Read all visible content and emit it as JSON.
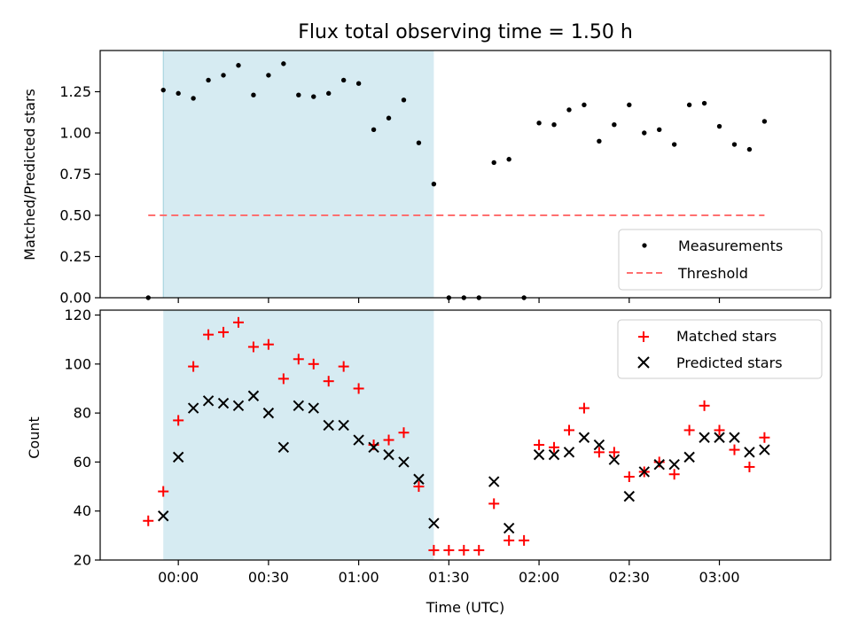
{
  "chart_data": [
    {
      "type": "scatter",
      "title": "Flux total observing time = 1.50 h",
      "ylabel": "Matched/Predicted stars",
      "xlabel": "",
      "ylim": [
        0,
        1.5
      ],
      "xlim": [
        "23:34",
        "03:37"
      ],
      "shaded_interval": [
        "23:55",
        "01:25"
      ],
      "shade_color": "#add8e6",
      "yticks": [
        "0.00",
        "0.25",
        "0.50",
        "0.75",
        "1.00",
        "1.25"
      ],
      "legend_position": "lower-right",
      "series": [
        {
          "name": "Measurements",
          "marker": "dot",
          "color": "#000000",
          "x": [
            "23:50",
            "23:55",
            "00:00",
            "00:05",
            "00:10",
            "00:15",
            "00:20",
            "00:25",
            "00:30",
            "00:35",
            "00:40",
            "00:45",
            "00:50",
            "00:55",
            "01:00",
            "01:05",
            "01:10",
            "01:15",
            "01:20",
            "01:25",
            "01:30",
            "01:35",
            "01:40",
            "01:45",
            "01:50",
            "01:55",
            "02:00",
            "02:05",
            "02:10",
            "02:15",
            "02:20",
            "02:25",
            "02:30",
            "02:35",
            "02:40",
            "02:45",
            "02:50",
            "02:55",
            "03:00",
            "03:05",
            "03:10",
            "03:15"
          ],
          "y": [
            0.0,
            1.26,
            1.24,
            1.21,
            1.32,
            1.35,
            1.41,
            1.23,
            1.35,
            1.42,
            1.23,
            1.22,
            1.24,
            1.32,
            1.3,
            1.02,
            1.09,
            1.2,
            0.94,
            0.69,
            0.0,
            0.0,
            0.0,
            0.82,
            0.84,
            0.0,
            1.06,
            1.05,
            1.14,
            1.17,
            0.95,
            1.05,
            1.17,
            1.0,
            1.02,
            0.93,
            1.17,
            1.18,
            1.04,
            0.93,
            0.9,
            1.07
          ]
        },
        {
          "name": "Threshold",
          "style": "dashed-line",
          "color": "#ff7070",
          "x": [
            "23:50",
            "03:15"
          ],
          "y": [
            0.5,
            0.5
          ]
        }
      ]
    },
    {
      "type": "scatter",
      "title": "",
      "ylabel": "Count",
      "xlabel": "Time (UTC)",
      "ylim": [
        20,
        122
      ],
      "xlim": [
        "23:34",
        "03:37"
      ],
      "shaded_interval": [
        "23:55",
        "01:25"
      ],
      "shade_color": "#add8e6",
      "yticks": [
        "20",
        "40",
        "60",
        "80",
        "100",
        "120"
      ],
      "xticks": [
        "00:00",
        "00:30",
        "01:00",
        "01:30",
        "02:00",
        "02:30",
        "03:00"
      ],
      "legend_position": "upper-right",
      "series": [
        {
          "name": "Matched stars",
          "marker": "plus",
          "color": "#ff0000",
          "x": [
            "23:50",
            "23:55",
            "00:00",
            "00:05",
            "00:10",
            "00:15",
            "00:20",
            "00:25",
            "00:30",
            "00:35",
            "00:40",
            "00:45",
            "00:50",
            "00:55",
            "01:00",
            "01:05",
            "01:10",
            "01:15",
            "01:20",
            "01:25",
            "01:30",
            "01:35",
            "01:40",
            "01:45",
            "01:50",
            "01:55",
            "02:00",
            "02:05",
            "02:10",
            "02:15",
            "02:20",
            "02:25",
            "02:30",
            "02:35",
            "02:40",
            "02:45",
            "02:50",
            "02:55",
            "03:00",
            "03:05",
            "03:10",
            "03:15"
          ],
          "y": [
            36,
            48,
            77,
            99,
            112,
            113,
            117,
            107,
            108,
            94,
            102,
            100,
            93,
            99,
            90,
            67,
            69,
            72,
            50,
            24,
            24,
            24,
            24,
            43,
            28,
            28,
            67,
            66,
            73,
            82,
            64,
            64,
            54,
            56,
            60,
            55,
            73,
            83,
            73,
            65,
            58,
            70
          ]
        },
        {
          "name": "Predicted stars",
          "marker": "x",
          "color": "#000000",
          "x": [
            "23:55",
            "00:00",
            "00:05",
            "00:10",
            "00:15",
            "00:20",
            "00:25",
            "00:30",
            "00:35",
            "00:40",
            "00:45",
            "00:50",
            "00:55",
            "01:00",
            "01:05",
            "01:10",
            "01:15",
            "01:20",
            "01:25",
            "01:45",
            "01:50",
            "02:00",
            "02:05",
            "02:10",
            "02:15",
            "02:20",
            "02:25",
            "02:30",
            "02:35",
            "02:40",
            "02:45",
            "02:50",
            "02:55",
            "03:00",
            "03:05",
            "03:10",
            "03:15"
          ],
          "y": [
            38,
            62,
            82,
            85,
            84,
            83,
            87,
            80,
            66,
            83,
            82,
            75,
            75,
            69,
            66,
            63,
            60,
            53,
            35,
            52,
            33,
            63,
            63,
            64,
            70,
            67,
            61,
            46,
            56,
            59,
            59,
            62,
            70,
            70,
            70,
            64,
            65
          ]
        }
      ]
    }
  ]
}
